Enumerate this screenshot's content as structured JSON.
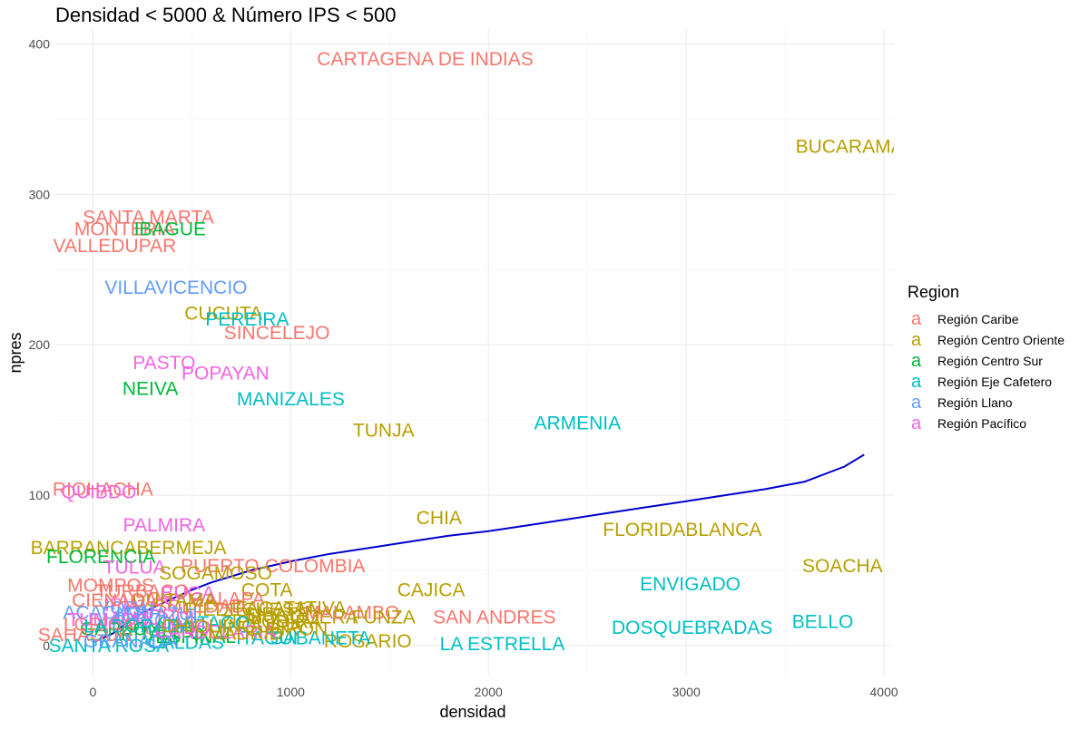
{
  "chart_data": {
    "type": "scatter",
    "title": "Densidad < 5000 & Número IPS < 500",
    "xlabel": "densidad",
    "ylabel": "npres",
    "xlim": [
      -190,
      4050
    ],
    "ylim": [
      -20,
      410
    ],
    "x_ticks": [
      0,
      1000,
      2000,
      3000,
      4000
    ],
    "y_ticks": [
      0,
      100,
      200,
      300,
      400
    ],
    "grid": true,
    "legend": {
      "title": "Region",
      "position": "right",
      "key_glyph": "a",
      "entries": [
        {
          "name": "Región Caribe",
          "color": "#F8766D"
        },
        {
          "name": "Región Centro Oriente",
          "color": "#B79F00"
        },
        {
          "name": "Región Centro Sur",
          "color": "#00BA38"
        },
        {
          "name": "Región Eje Cafetero",
          "color": "#00BFC4"
        },
        {
          "name": "Región Llano",
          "color": "#619CFF"
        },
        {
          "name": "Región Pacífico",
          "color": "#F564E3"
        }
      ]
    },
    "points": [
      {
        "label": "CARTAGENA DE INDIAS",
        "x": 1680,
        "y": 390,
        "region": "Región Caribe"
      },
      {
        "label": "BUCARAMANGA",
        "x": 3930,
        "y": 332,
        "region": "Región Centro Oriente"
      },
      {
        "label": "SANTA MARTA",
        "x": 280,
        "y": 285,
        "region": "Región Caribe"
      },
      {
        "label": "MONTERIA",
        "x": 160,
        "y": 277,
        "region": "Región Caribe"
      },
      {
        "label": "IBAGUE",
        "x": 390,
        "y": 277,
        "region": "Región Centro Sur"
      },
      {
        "label": "VALLEDUPAR",
        "x": 110,
        "y": 266,
        "region": "Región Caribe"
      },
      {
        "label": "VILLAVICENCIO",
        "x": 420,
        "y": 238,
        "region": "Región Llano"
      },
      {
        "label": "CUCUTA",
        "x": 660,
        "y": 221,
        "region": "Región Centro Oriente"
      },
      {
        "label": "PEREIRA",
        "x": 780,
        "y": 217,
        "region": "Región Eje Cafetero"
      },
      {
        "label": "SINCELEJO",
        "x": 930,
        "y": 208,
        "region": "Región Caribe"
      },
      {
        "label": "PASTO",
        "x": 360,
        "y": 188,
        "region": "Región Pacífico"
      },
      {
        "label": "POPAYAN",
        "x": 670,
        "y": 181,
        "region": "Región Pacífico"
      },
      {
        "label": "NEIVA",
        "x": 290,
        "y": 171,
        "region": "Región Centro Sur"
      },
      {
        "label": "MANIZALES",
        "x": 1000,
        "y": 164,
        "region": "Región Eje Cafetero"
      },
      {
        "label": "TUNJA",
        "x": 1470,
        "y": 143,
        "region": "Región Centro Oriente"
      },
      {
        "label": "ARMENIA",
        "x": 2450,
        "y": 148,
        "region": "Región Eje Cafetero"
      },
      {
        "label": "RIOHACHA",
        "x": 50,
        "y": 104,
        "region": "Región Caribe"
      },
      {
        "label": "QUIBDO",
        "x": 30,
        "y": 102,
        "region": "Región Pacífico"
      },
      {
        "label": "CHIA",
        "x": 1750,
        "y": 85,
        "region": "Región Centro Oriente"
      },
      {
        "label": "PALMIRA",
        "x": 360,
        "y": 80,
        "region": "Región Pacífico"
      },
      {
        "label": "FLORIDABLANCA",
        "x": 2980,
        "y": 77,
        "region": "Región Centro Oriente"
      },
      {
        "label": "BARRANCABERMEJA",
        "x": 180,
        "y": 65,
        "region": "Región Centro Oriente"
      },
      {
        "label": "FLORENCIA",
        "x": 40,
        "y": 59,
        "region": "Región Centro Sur"
      },
      {
        "label": "TULUA",
        "x": 210,
        "y": 52,
        "region": "Región Pacífico"
      },
      {
        "label": "PUERTO COLOMBIA",
        "x": 910,
        "y": 53,
        "region": "Región Caribe"
      },
      {
        "label": "SOGAMOSO",
        "x": 620,
        "y": 48,
        "region": "Región Centro Oriente"
      },
      {
        "label": "SOACHA",
        "x": 3790,
        "y": 53,
        "region": "Región Centro Oriente"
      },
      {
        "label": "ENVIGADO",
        "x": 3020,
        "y": 41,
        "region": "Región Eje Cafetero"
      },
      {
        "label": "CAJICA",
        "x": 1710,
        "y": 37,
        "region": "Región Centro Oriente"
      },
      {
        "label": "MOSQUERA",
        "x": 1060,
        "y": 19,
        "region": "Región Centro Oriente"
      },
      {
        "label": "MALAMBO",
        "x": 1310,
        "y": 22,
        "region": "Región Caribe"
      },
      {
        "label": "SAN ANDRES",
        "x": 2030,
        "y": 19,
        "region": "Región Caribe"
      },
      {
        "label": "DOSQUEBRADAS",
        "x": 3030,
        "y": 12,
        "region": "Región Eje Cafetero"
      },
      {
        "label": "BELLO",
        "x": 3690,
        "y": 16,
        "region": "Región Eje Cafetero"
      },
      {
        "label": "LA ESTRELLA",
        "x": 2070,
        "y": 1,
        "region": "Región Eje Cafetero"
      },
      {
        "label": "SANTA ROSA",
        "x": 80,
        "y": 0,
        "region": "Región Eje Cafetero"
      },
      {
        "label": "ROSARIO",
        "x": 1390,
        "y": 3,
        "region": "Región Centro Oriente"
      },
      {
        "label": "SABANETA",
        "x": 1150,
        "y": 5,
        "region": "Región Eje Cafetero"
      },
      {
        "label": "CALDAS",
        "x": 470,
        "y": 2,
        "region": "Región Eje Cafetero"
      },
      {
        "label": "FUNZA",
        "x": 1470,
        "y": 19,
        "region": "Región Centro Oriente"
      },
      {
        "label": "COTA",
        "x": 880,
        "y": 37,
        "region": "Región Centro Oriente"
      },
      {
        "label": "SIBATE",
        "x": 930,
        "y": 21,
        "region": "Región Centro Oriente"
      },
      {
        "label": "GIRON",
        "x": 1030,
        "y": 11,
        "region": "Región Centro Oriente"
      },
      {
        "label": "ITAGUI",
        "x": 880,
        "y": 5,
        "region": "Región Eje Cafetero"
      },
      {
        "label": "PIEDECUESTA",
        "x": 800,
        "y": 24,
        "region": "Región Centro Oriente"
      },
      {
        "label": "GALAPA",
        "x": 680,
        "y": 31,
        "region": "Región Caribe"
      },
      {
        "label": "SOLEDAD",
        "x": 540,
        "y": 26,
        "region": "Región Caribe"
      },
      {
        "label": "TURBACO",
        "x": 250,
        "y": 36,
        "region": "Región Caribe"
      },
      {
        "label": "MOMPOS",
        "x": 90,
        "y": 40,
        "region": "Región Caribe"
      },
      {
        "label": "FACATATIVA",
        "x": 1000,
        "y": 25,
        "region": "Región Centro Oriente"
      },
      {
        "label": "ZIPAQUIRA",
        "x": 900,
        "y": 16,
        "region": "Región Centro Oriente"
      },
      {
        "label": "BUGA",
        "x": 480,
        "y": 35,
        "region": "Región Pacífico"
      },
      {
        "label": "CARTAGO",
        "x": 560,
        "y": 15,
        "region": "Región Eje Cafetero"
      },
      {
        "label": "IPIALES",
        "x": 240,
        "y": 27,
        "region": "Región Pacífico"
      },
      {
        "label": "DUITAMA",
        "x": 410,
        "y": 30,
        "region": "Región Centro Oriente"
      },
      {
        "label": "YOPAL",
        "x": 180,
        "y": 25,
        "region": "Región Llano"
      },
      {
        "label": "ACACIAS",
        "x": 60,
        "y": 22,
        "region": "Región Llano"
      },
      {
        "label": "JAMUNDI",
        "x": 300,
        "y": 18,
        "region": "Región Pacífico"
      },
      {
        "label": "GARZON",
        "x": 140,
        "y": 11,
        "region": "Región Centro Sur"
      },
      {
        "label": "PITALITO",
        "x": 350,
        "y": 8,
        "region": "Región Centro Sur"
      },
      {
        "label": "ESPINAL",
        "x": 520,
        "y": 6,
        "region": "Región Centro Sur"
      },
      {
        "label": "LORICA",
        "x": 30,
        "y": 14,
        "region": "Región Caribe"
      },
      {
        "label": "CIENAGA",
        "x": 110,
        "y": 30,
        "region": "Región Caribe"
      },
      {
        "label": "SAHAGUN",
        "x": -40,
        "y": 7,
        "region": "Región Caribe"
      },
      {
        "label": "TUMACO",
        "x": 80,
        "y": 17,
        "region": "Región Pacífico"
      },
      {
        "label": "YUMBO",
        "x": 420,
        "y": 12,
        "region": "Región Pacífico"
      },
      {
        "label": "GRANADA",
        "x": 190,
        "y": 3,
        "region": "Región Llano"
      },
      {
        "label": "AGUAZUL",
        "x": 330,
        "y": 21,
        "region": "Región Llano"
      },
      {
        "label": "CANDELARIA",
        "x": 620,
        "y": 9,
        "region": "Región Pacífico"
      },
      {
        "label": "LA DORADA",
        "x": 230,
        "y": 13,
        "region": "Región Eje Cafetero"
      },
      {
        "label": "CHIQUINQUIRA",
        "x": 700,
        "y": 13,
        "region": "Región Centro Oriente"
      },
      {
        "label": "MADRID",
        "x": 770,
        "y": 8,
        "region": "Región Centro Oriente"
      }
    ],
    "trend_line": {
      "color": "#0000CC",
      "x": [
        0,
        100,
        200,
        300,
        400,
        500,
        600,
        700,
        800,
        900,
        1000,
        1200,
        1400,
        1600,
        1800,
        2000,
        2200,
        2400,
        2600,
        2800,
        3000,
        3200,
        3400,
        3600,
        3800,
        3900
      ],
      "y": [
        2,
        8,
        18,
        25,
        31,
        37,
        42,
        46,
        50,
        53,
        56,
        61,
        65,
        69,
        73,
        76,
        80,
        84,
        88,
        92,
        96,
        100,
        104,
        109,
        119,
        127
      ]
    }
  }
}
